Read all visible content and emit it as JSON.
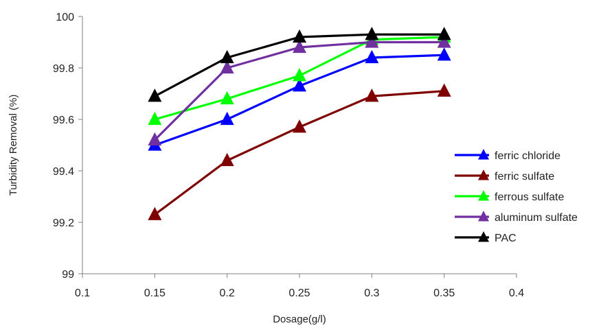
{
  "chart_data": {
    "type": "line",
    "title": "",
    "xlabel": "Dosage(g/l)",
    "ylabel": "Turbidity Removal (%)",
    "xlim": [
      0.1,
      0.4
    ],
    "ylim": [
      99,
      100
    ],
    "x_ticks": [
      "0.1",
      "0.15",
      "0.2",
      "0.25",
      "0.3",
      "0.35",
      "0.4"
    ],
    "y_ticks": [
      "99",
      "99.2",
      "99.4",
      "99.6",
      "99.8",
      "100"
    ],
    "x": [
      0.15,
      0.2,
      0.25,
      0.3,
      0.35
    ],
    "grid": false,
    "legend_position": "right",
    "marker": "triangle",
    "series": [
      {
        "name": "ferric chloride",
        "color": "#0000ff",
        "values": [
          99.5,
          99.6,
          99.73,
          99.84,
          99.85
        ]
      },
      {
        "name": "ferric sulfate",
        "color": "#7f0000",
        "values": [
          99.23,
          99.44,
          99.57,
          99.69,
          99.71
        ]
      },
      {
        "name": "ferrous sulfate",
        "color": "#00ff00",
        "values": [
          99.6,
          99.68,
          99.77,
          99.91,
          99.92
        ]
      },
      {
        "name": "aluminum sulfate",
        "color": "#7030a0",
        "values": [
          99.52,
          99.8,
          99.88,
          99.9,
          99.9
        ]
      },
      {
        "name": "PAC",
        "color": "#000000",
        "values": [
          99.69,
          99.84,
          99.92,
          99.93,
          99.93
        ]
      }
    ]
  }
}
